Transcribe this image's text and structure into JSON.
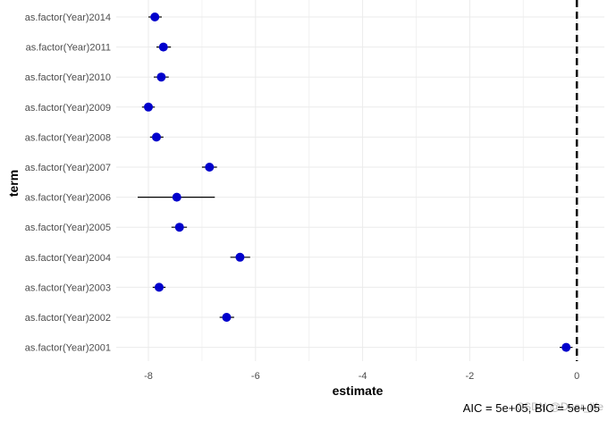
{
  "chart_data": {
    "type": "scatter",
    "title": "",
    "xlabel": "estimate",
    "ylabel": "term",
    "xlim": [
      -8.6,
      0.1
    ],
    "x_ticks": [
      -8,
      -6,
      -4,
      -2,
      0
    ],
    "x_tick_labels": [
      "-8",
      "-6",
      "-4",
      "-2",
      "0"
    ],
    "grid": true,
    "reference_line": {
      "x": 0,
      "style": "dashed"
    },
    "caption": "AIC = 5e+05, BIC = 5e+05",
    "watermark": "CSDN @Dear_life",
    "point_color": "#0000cc",
    "points": [
      {
        "term": "as.factor(Year)2014",
        "estimate": -7.88,
        "lower": -8.0,
        "upper": -7.75
      },
      {
        "term": "as.factor(Year)2011",
        "estimate": -7.72,
        "lower": -7.85,
        "upper": -7.58
      },
      {
        "term": "as.factor(Year)2010",
        "estimate": -7.76,
        "lower": -7.9,
        "upper": -7.62
      },
      {
        "term": "as.factor(Year)2009",
        "estimate": -8.0,
        "lower": -8.12,
        "upper": -7.88
      },
      {
        "term": "as.factor(Year)2008",
        "estimate": -7.85,
        "lower": -7.97,
        "upper": -7.72
      },
      {
        "term": "as.factor(Year)2007",
        "estimate": -6.86,
        "lower": -7.0,
        "upper": -6.72
      },
      {
        "term": "as.factor(Year)2006",
        "estimate": -7.47,
        "lower": -8.2,
        "upper": -6.76
      },
      {
        "term": "as.factor(Year)2005",
        "estimate": -7.42,
        "lower": -7.57,
        "upper": -7.28
      },
      {
        "term": "as.factor(Year)2004",
        "estimate": -6.29,
        "lower": -6.47,
        "upper": -6.1
      },
      {
        "term": "as.factor(Year)2003",
        "estimate": -7.8,
        "lower": -7.92,
        "upper": -7.68
      },
      {
        "term": "as.factor(Year)2002",
        "estimate": -6.54,
        "lower": -6.67,
        "upper": -6.4
      },
      {
        "term": "as.factor(Year)2001",
        "estimate": -0.2,
        "lower": -0.32,
        "upper": -0.08
      }
    ]
  }
}
